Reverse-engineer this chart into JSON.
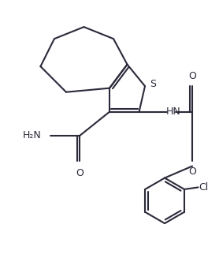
{
  "bg_color": "#ffffff",
  "line_color": "#2a2a3a",
  "line_width": 1.5,
  "figsize": [
    2.78,
    3.46
  ],
  "dpi": 100,
  "xlim": [
    -0.5,
    10.5
  ],
  "ylim": [
    -0.5,
    13.0
  ]
}
